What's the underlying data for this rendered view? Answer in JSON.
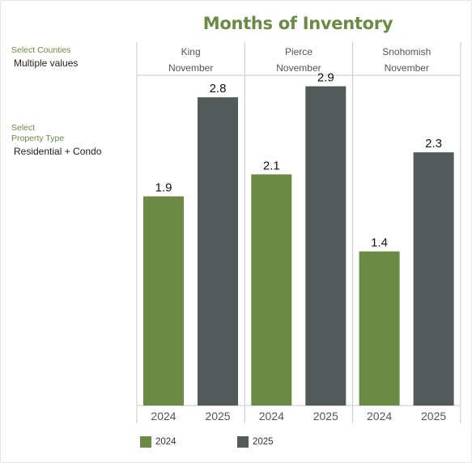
{
  "title": "Months of Inventory",
  "filters": [
    {
      "label": "Select Counties",
      "value": "Multiple values"
    },
    {
      "label": "Select\nProperty Type",
      "value": "Residential + Condo"
    }
  ],
  "colors": {
    "y2024": "#6a8a45",
    "y2025": "#525b59",
    "grid": "#c8c8c8"
  },
  "chart_data": {
    "type": "bar",
    "title": "Months of Inventory",
    "panels": [
      {
        "county": "King",
        "month": "November",
        "categories": [
          "2024",
          "2025"
        ],
        "values": [
          1.9,
          2.8
        ]
      },
      {
        "county": "Pierce",
        "month": "November",
        "categories": [
          "2024",
          "2025"
        ],
        "values": [
          2.1,
          2.9
        ]
      },
      {
        "county": "Snohomish",
        "month": "November",
        "categories": [
          "2024",
          "2025"
        ],
        "values": [
          1.4,
          2.3
        ]
      }
    ],
    "series": [
      {
        "name": "2024",
        "color": "#6a8a45"
      },
      {
        "name": "2025",
        "color": "#525b59"
      }
    ],
    "legend": "bottom",
    "ylim": [
      0,
      3.0
    ],
    "grid": false
  }
}
